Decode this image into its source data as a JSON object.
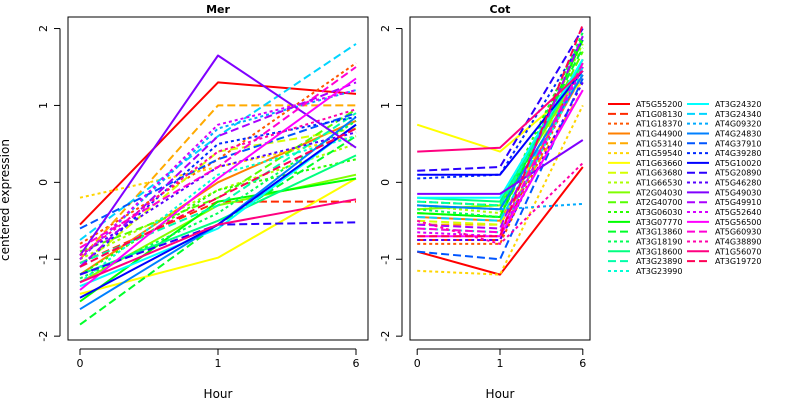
{
  "chart_data": {
    "type": "line",
    "ylabel": "centered expression",
    "xlabel": "Hour",
    "x_labels": [
      "0",
      "1",
      "6"
    ],
    "y_ticks": [
      -2,
      -1,
      0,
      1,
      2
    ],
    "ylim": [
      -2.05,
      2.15
    ],
    "legend_position": "right",
    "panels": [
      {
        "title": "Mer",
        "series": [
          {
            "name": "AT5G55200",
            "color": "#ff0000",
            "dash": "solid",
            "values": [
              -0.55,
              1.3,
              1.15
            ]
          },
          {
            "name": "AT1G08130",
            "color": "#ff2a00",
            "dash": "dashed",
            "values": [
              -1.05,
              -0.25,
              -0.25
            ]
          },
          {
            "name": "AT1G18370",
            "color": "#ff5500",
            "dash": "dotted",
            "values": [
              -0.8,
              0.3,
              1.55
            ]
          },
          {
            "name": "AT1G44900",
            "color": "#ff8000",
            "dash": "solid",
            "values": [
              -1.2,
              0.0,
              0.8
            ]
          },
          {
            "name": "AT1G53140",
            "color": "#ffaa00",
            "dash": "dashed",
            "values": [
              -1.0,
              1.0,
              1.0
            ]
          },
          {
            "name": "AT1G59540",
            "color": "#ffd500",
            "dash": "dotted",
            "values": [
              -0.2,
              0.2,
              0.6
            ]
          },
          {
            "name": "AT1G63660",
            "color": "#ffff00",
            "dash": "solid",
            "values": [
              -1.45,
              -0.98,
              0.05
            ]
          },
          {
            "name": "AT1G63680",
            "color": "#d5ff00",
            "dash": "dashed",
            "values": [
              -1.1,
              0.4,
              0.7
            ]
          },
          {
            "name": "AT1G66530",
            "color": "#aaff00",
            "dash": "dotted",
            "values": [
              -1.0,
              -0.1,
              0.5
            ]
          },
          {
            "name": "AT2G04030",
            "color": "#80ff00",
            "dash": "solid",
            "values": [
              -1.3,
              -0.3,
              0.1
            ]
          },
          {
            "name": "AT2G40700",
            "color": "#55ff00",
            "dash": "dashed",
            "values": [
              -0.9,
              -0.2,
              0.95
            ]
          },
          {
            "name": "AT3G06030",
            "color": "#2aff00",
            "dash": "dotted",
            "values": [
              -1.2,
              -0.1,
              0.3
            ]
          },
          {
            "name": "AT3G07770",
            "color": "#00ff00",
            "dash": "solid",
            "values": [
              -1.55,
              -0.25,
              0.05
            ]
          },
          {
            "name": "AT3G13860",
            "color": "#00ff2a",
            "dash": "dashed",
            "values": [
              -1.85,
              -0.55,
              0.6
            ]
          },
          {
            "name": "AT3G18190",
            "color": "#00ff55",
            "dash": "dotted",
            "values": [
              -1.25,
              -0.4,
              0.8
            ]
          },
          {
            "name": "AT3G18600",
            "color": "#00ff80",
            "dash": "solid",
            "values": [
              -1.2,
              -0.5,
              0.35
            ]
          },
          {
            "name": "AT3G23890",
            "color": "#00ffaa",
            "dash": "dashed",
            "values": [
              -1.05,
              -0.3,
              0.9
            ]
          },
          {
            "name": "AT3G23990",
            "color": "#00ffd5",
            "dash": "dotted",
            "values": [
              -1.3,
              0.1,
              0.6
            ]
          },
          {
            "name": "AT3G24320",
            "color": "#00ffff",
            "dash": "solid",
            "values": [
              -1.35,
              -0.6,
              0.75
            ]
          },
          {
            "name": "AT3G24340",
            "color": "#00d5ff",
            "dash": "dashed",
            "values": [
              -0.75,
              0.6,
              1.8
            ]
          },
          {
            "name": "AT4G09320",
            "color": "#00aaff",
            "dash": "dotted",
            "values": [
              -1.0,
              0.7,
              1.2
            ]
          },
          {
            "name": "AT4G24830",
            "color": "#0080ff",
            "dash": "solid",
            "values": [
              -1.65,
              -0.55,
              0.85
            ]
          },
          {
            "name": "AT4G37910",
            "color": "#0055ff",
            "dash": "dashed",
            "values": [
              -0.6,
              0.3,
              0.9
            ]
          },
          {
            "name": "AT4G39280",
            "color": "#002aff",
            "dash": "dotted",
            "values": [
              -1.1,
              0.5,
              0.85
            ]
          },
          {
            "name": "AT5G10020",
            "color": "#0000ff",
            "dash": "solid",
            "values": [
              -1.5,
              -0.55,
              0.75
            ]
          },
          {
            "name": "AT5G20890",
            "color": "#2a00ff",
            "dash": "dashed",
            "values": [
              -1.2,
              -0.55,
              -0.52
            ]
          },
          {
            "name": "AT5G46280",
            "color": "#5500ff",
            "dash": "dotted",
            "values": [
              -0.95,
              0.2,
              0.65
            ]
          },
          {
            "name": "AT5G49030",
            "color": "#8000ff",
            "dash": "solid",
            "values": [
              -0.95,
              1.65,
              0.45
            ]
          },
          {
            "name": "AT5G49910",
            "color": "#aa00ff",
            "dash": "dashed",
            "values": [
              -1.1,
              0.6,
              1.3
            ]
          },
          {
            "name": "AT5G52640",
            "color": "#d500ff",
            "dash": "dotted",
            "values": [
              -1.0,
              0.75,
              1.2
            ]
          },
          {
            "name": "AT5G56500",
            "color": "#ff00ff",
            "dash": "solid",
            "values": [
              -1.4,
              0.05,
              1.35
            ]
          },
          {
            "name": "AT5G60930",
            "color": "#ff00d5",
            "dash": "dashed",
            "values": [
              -0.85,
              0.2,
              1.5
            ]
          },
          {
            "name": "AT4G38890",
            "color": "#ff00aa",
            "dash": "dotted",
            "values": [
              -0.95,
              0.4,
              0.95
            ]
          },
          {
            "name": "AT1G56070",
            "color": "#ff0080",
            "dash": "solid",
            "values": [
              -1.3,
              -0.55,
              -0.22
            ]
          },
          {
            "name": "AT3G19720",
            "color": "#ff0055",
            "dash": "dashed",
            "values": [
              -1.1,
              -0.2,
              0.7
            ]
          }
        ]
      },
      {
        "title": "Cot",
        "series": [
          {
            "name": "AT5G55200",
            "color": "#ff0000",
            "dash": "solid",
            "values": [
              -0.9,
              -1.2,
              0.2
            ]
          },
          {
            "name": "AT1G08130",
            "color": "#ff2a00",
            "dash": "dashed",
            "values": [
              -0.75,
              -0.75,
              1.6
            ]
          },
          {
            "name": "AT1G18370",
            "color": "#ff5500",
            "dash": "dotted",
            "values": [
              -0.8,
              -0.8,
              1.5
            ]
          },
          {
            "name": "AT1G44900",
            "color": "#ff8000",
            "dash": "solid",
            "values": [
              -0.45,
              -0.5,
              1.4
            ]
          },
          {
            "name": "AT1G53140",
            "color": "#ffaa00",
            "dash": "dashed",
            "values": [
              -0.55,
              -0.55,
              1.2
            ]
          },
          {
            "name": "AT1G59540",
            "color": "#ffd500",
            "dash": "dotted",
            "values": [
              -1.15,
              -1.2,
              1.0
            ]
          },
          {
            "name": "AT1G63660",
            "color": "#ffff00",
            "dash": "solid",
            "values": [
              0.75,
              0.4,
              1.3
            ]
          },
          {
            "name": "AT1G63680",
            "color": "#d5ff00",
            "dash": "dashed",
            "values": [
              -0.5,
              -0.55,
              1.6
            ]
          },
          {
            "name": "AT1G66530",
            "color": "#aaff00",
            "dash": "dotted",
            "values": [
              -0.3,
              -0.4,
              1.8
            ]
          },
          {
            "name": "AT2G04030",
            "color": "#80ff00",
            "dash": "solid",
            "values": [
              -0.35,
              -0.3,
              1.5
            ]
          },
          {
            "name": "AT2G40700",
            "color": "#55ff00",
            "dash": "dashed",
            "values": [
              -0.4,
              -0.45,
              1.7
            ]
          },
          {
            "name": "AT3G06030",
            "color": "#2aff00",
            "dash": "dotted",
            "values": [
              -0.25,
              -0.3,
              1.9
            ]
          },
          {
            "name": "AT3G07770",
            "color": "#00ff00",
            "dash": "solid",
            "values": [
              -0.4,
              -0.45,
              1.85
            ]
          },
          {
            "name": "AT3G13860",
            "color": "#00ff2a",
            "dash": "dashed",
            "values": [
              -0.3,
              -0.35,
              1.75
            ]
          },
          {
            "name": "AT3G18190",
            "color": "#00ff55",
            "dash": "dotted",
            "values": [
              -0.35,
              -0.45,
              1.95
            ]
          },
          {
            "name": "AT3G18600",
            "color": "#00ff80",
            "dash": "solid",
            "values": [
              -0.2,
              -0.25,
              1.55
            ]
          },
          {
            "name": "AT3G23890",
            "color": "#00ffaa",
            "dash": "dashed",
            "values": [
              -0.25,
              -0.3,
              1.6
            ]
          },
          {
            "name": "AT3G23990",
            "color": "#00ffd5",
            "dash": "dotted",
            "values": [
              -0.6,
              -0.65,
              1.45
            ]
          },
          {
            "name": "AT3G24320",
            "color": "#00ffff",
            "dash": "solid",
            "values": [
              -0.2,
              -0.2,
              1.6
            ]
          },
          {
            "name": "AT3G24340",
            "color": "#00d5ff",
            "dash": "dashed",
            "values": [
              -0.45,
              -0.5,
              1.5
            ]
          },
          {
            "name": "AT4G09320",
            "color": "#00aaff",
            "dash": "dotted",
            "values": [
              -0.3,
              -0.35,
              -0.28
            ]
          },
          {
            "name": "AT4G24830",
            "color": "#0080ff",
            "dash": "solid",
            "values": [
              -0.3,
              -0.35,
              1.4
            ]
          },
          {
            "name": "AT4G37910",
            "color": "#0055ff",
            "dash": "dashed",
            "values": [
              -0.9,
              -1.0,
              1.35
            ]
          },
          {
            "name": "AT4G39280",
            "color": "#002aff",
            "dash": "dotted",
            "values": [
              0.05,
              0.1,
              1.85
            ]
          },
          {
            "name": "AT5G10020",
            "color": "#0000ff",
            "dash": "solid",
            "values": [
              0.1,
              0.1,
              1.45
            ]
          },
          {
            "name": "AT5G20890",
            "color": "#2a00ff",
            "dash": "dashed",
            "values": [
              0.15,
              0.2,
              2.0
            ]
          },
          {
            "name": "AT5G46280",
            "color": "#5500ff",
            "dash": "dotted",
            "values": [
              -0.75,
              -0.75,
              1.3
            ]
          },
          {
            "name": "AT5G49030",
            "color": "#8000ff",
            "dash": "solid",
            "values": [
              -0.15,
              -0.15,
              0.55
            ]
          },
          {
            "name": "AT5G49910",
            "color": "#aa00ff",
            "dash": "dashed",
            "values": [
              -0.55,
              -0.6,
              1.9
            ]
          },
          {
            "name": "AT5G52640",
            "color": "#d500ff",
            "dash": "dotted",
            "values": [
              -0.65,
              -0.7,
              1.5
            ]
          },
          {
            "name": "AT5G56500",
            "color": "#ff00ff",
            "dash": "solid",
            "values": [
              -0.7,
              -0.7,
              1.2
            ]
          },
          {
            "name": "AT5G60930",
            "color": "#ff00d5",
            "dash": "dashed",
            "values": [
              -0.6,
              -0.65,
              1.55
            ]
          },
          {
            "name": "AT4G38890",
            "color": "#ff00aa",
            "dash": "dotted",
            "values": [
              -0.5,
              -0.8,
              0.25
            ]
          },
          {
            "name": "AT1G56070",
            "color": "#ff0080",
            "dash": "solid",
            "values": [
              0.4,
              0.45,
              1.45
            ]
          },
          {
            "name": "AT3G19720",
            "color": "#ff0055",
            "dash": "dashed",
            "values": [
              -0.7,
              -0.7,
              2.05
            ]
          }
        ]
      }
    ]
  }
}
